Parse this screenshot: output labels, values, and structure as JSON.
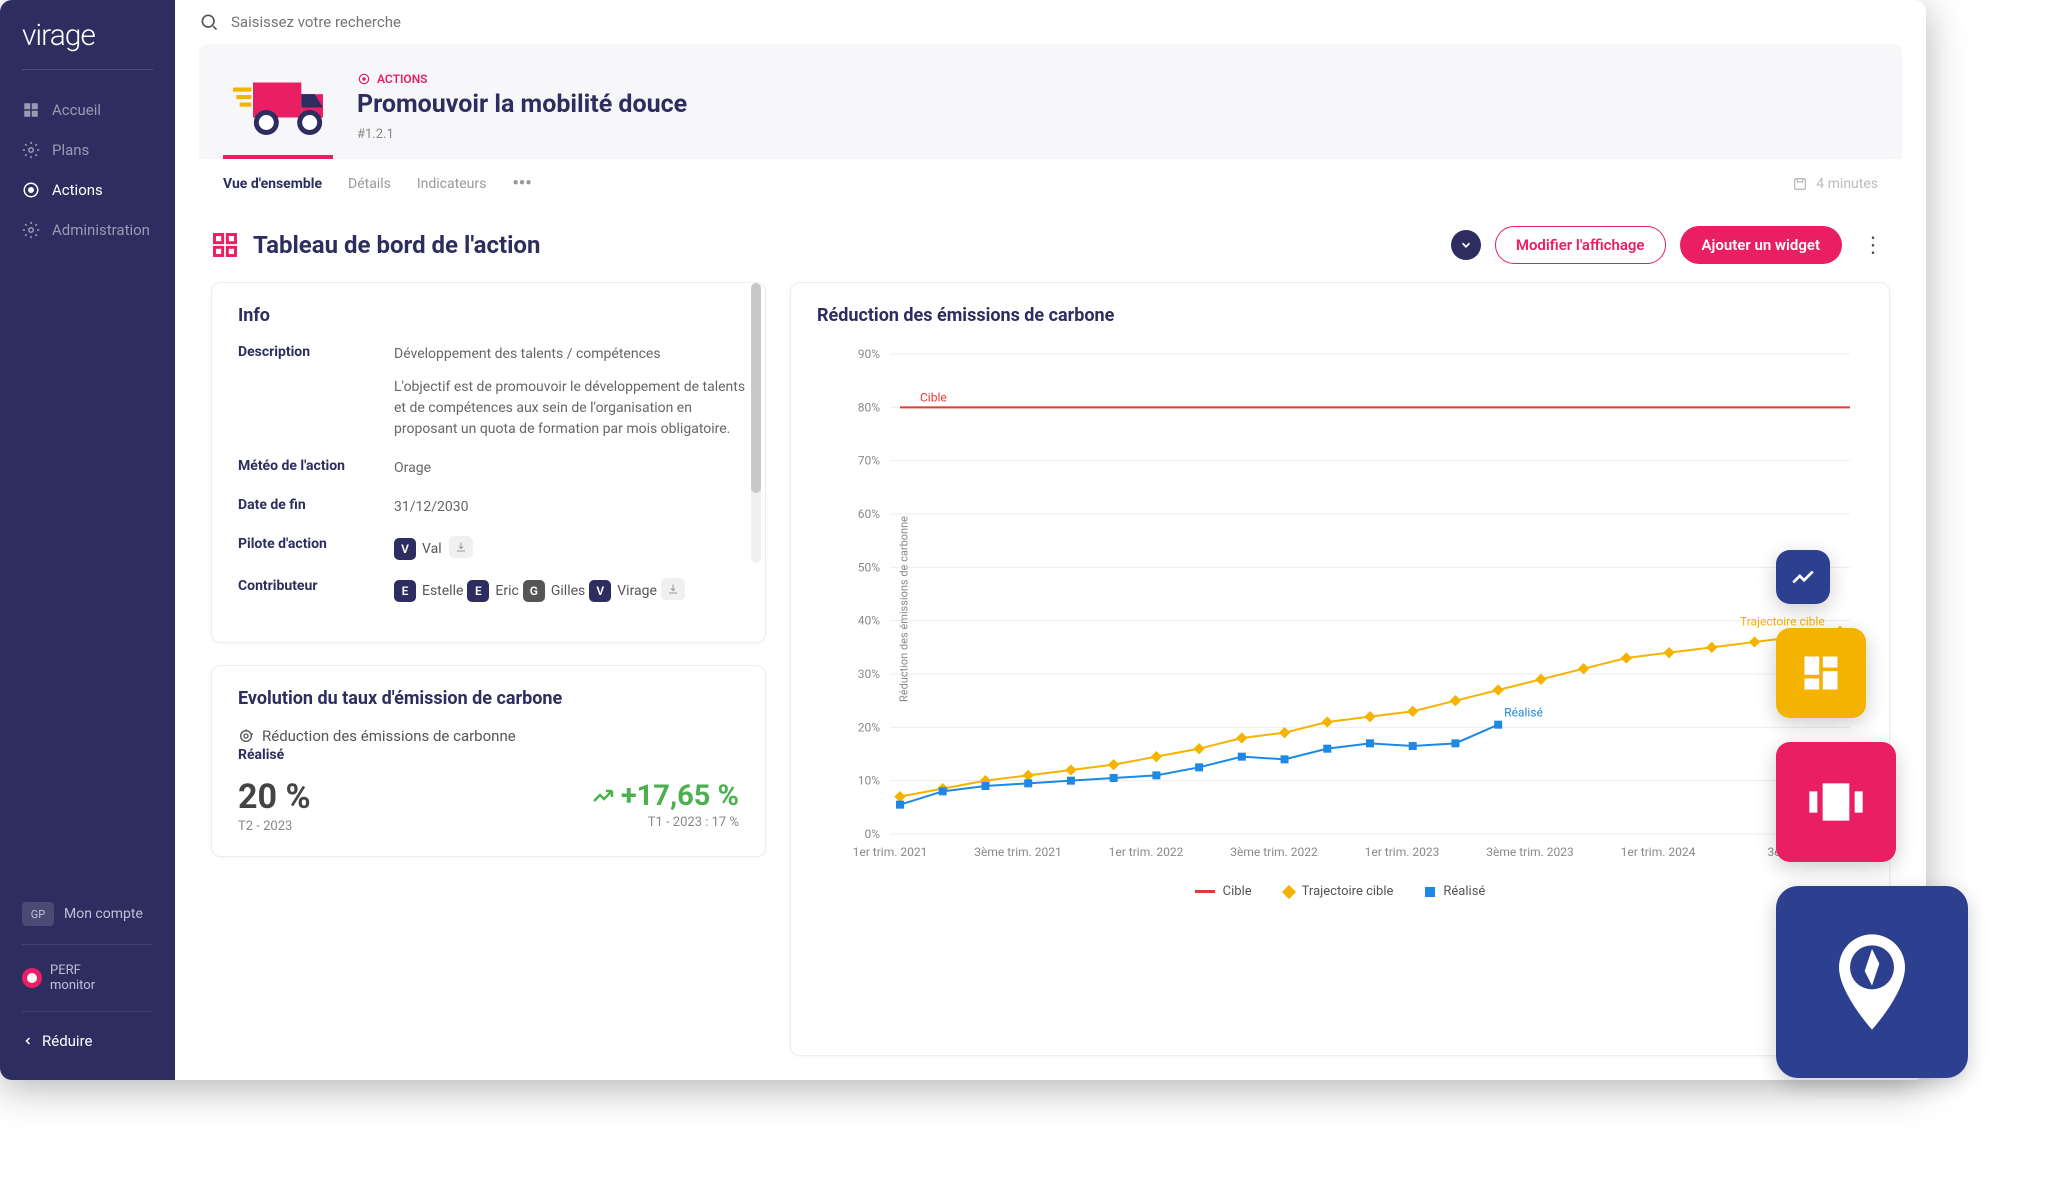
{
  "logo": "virage",
  "search": {
    "placeholder": "Saisissez votre recherche"
  },
  "nav": {
    "accueil": "Accueil",
    "plans": "Plans",
    "actions": "Actions",
    "admin": "Administration"
  },
  "account": {
    "badge": "GP",
    "label": "Mon compte"
  },
  "perf": {
    "line1": "PERF",
    "line2": "monitor"
  },
  "reduce": "Réduire",
  "breadcrumb": "ACTIONS",
  "title": "Promouvoir la mobilité douce",
  "action_id": "#1.2.1",
  "tabs": {
    "overview": "Vue d'ensemble",
    "details": "Détails",
    "indicators": "Indicateurs"
  },
  "last_update": "4 minutes",
  "dashboard_title": "Tableau de bord de l'action",
  "buttons": {
    "modify": "Modifier l'affichage",
    "add_widget": "Ajouter un widget"
  },
  "info_card": {
    "title": "Info",
    "description_label": "Description",
    "description_line1": "Développement des talents / compétences",
    "description_line2": "L'objectif est de promouvoir le développement de talents et de compétences aux sein de l'organisation en proposant un quota de formation par mois obligatoire.",
    "meteo_label": "Météo de l'action",
    "meteo_value": "Orage",
    "end_label": "Date de fin",
    "end_value": "31/12/2030",
    "pilot_label": "Pilote d'action",
    "pilot": {
      "initial": "V",
      "name": "Val",
      "color": "#2d2d5f"
    },
    "contrib_label": "Contributeur",
    "contributors": [
      {
        "initial": "E",
        "name": "Estelle",
        "color": "#2d2d5f"
      },
      {
        "initial": "E",
        "name": "Eric",
        "color": "#2d2d5f"
      },
      {
        "initial": "G",
        "name": "Gilles",
        "color": "#555"
      },
      {
        "initial": "V",
        "name": "Virage",
        "color": "#2d2d5f"
      }
    ]
  },
  "evolution_card": {
    "title": "Evolution du taux d'émission de carbone",
    "subtitle": "Réduction des émissions de carbonne",
    "realise_label": "Réalisé",
    "value": "20 %",
    "period": "T2 - 2023",
    "delta": "+17,65 %",
    "delta_color": "#4caf50",
    "prev": "T1 - 2023 : 17 %"
  },
  "chart_card": {
    "title": "Réduction des émissions de carbone",
    "y_axis_label": "Réduction des émissions de carbonne",
    "ylim": [
      0,
      90
    ],
    "ytick_step": 10,
    "x_labels": [
      "1er trim. 2021",
      "3ème trim. 2021",
      "1er trim. 2022",
      "3ème trim. 2022",
      "1er trim. 2023",
      "3ème trim. 2023",
      "1er trim. 2024",
      "3ème t"
    ],
    "cible_label": "Cible",
    "cible_value": 80,
    "cible_color": "#e53935",
    "trajectoire_label": "Trajectoire cible",
    "trajectoire_color": "#f5b301",
    "trajectoire": [
      7,
      8.5,
      10,
      11,
      12,
      13,
      14.5,
      16,
      18,
      19,
      21,
      22,
      23,
      25,
      27,
      29,
      31,
      33,
      34,
      35,
      36,
      37,
      38
    ],
    "realise_chart_label": "Réalisé",
    "realise_color": "#1e88e5",
    "realise": [
      5.5,
      8,
      9,
      9.5,
      10,
      10.5,
      11,
      12.5,
      14.5,
      14,
      16,
      17,
      16.5,
      17,
      20.5
    ],
    "legend": {
      "cible": "Cible",
      "trajectoire": "Trajectoire cible",
      "realise": "Réalisé"
    },
    "background_color": "#ffffff",
    "grid_color": "#eeeeee",
    "label_fontsize": 12
  },
  "tiles": {
    "t1_color": "#2d3f8f",
    "t2_color": "#f5b301",
    "t3_color": "#e91e63",
    "t4_color": "#2d3f8f"
  }
}
